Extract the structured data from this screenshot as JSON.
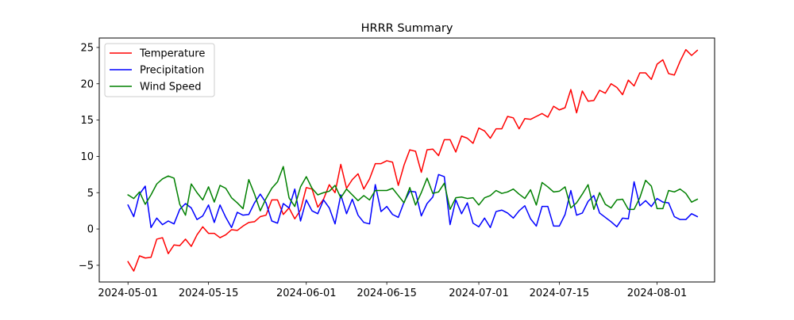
{
  "chart_data": {
    "type": "line",
    "title": "HRRR Summary",
    "xlabel": "",
    "ylabel": "",
    "x_start": "2024-05-01",
    "x_ticks": [
      "2024-05-01",
      "2024-05-15",
      "2024-06-01",
      "2024-06-15",
      "2024-07-01",
      "2024-07-15",
      "2024-08-01"
    ],
    "y_ticks": [
      -5,
      0,
      5,
      10,
      15,
      20,
      25
    ],
    "ylim": [
      -7.3,
      26.3
    ],
    "xlim": [
      "2024-04-26",
      "2024-08-11"
    ],
    "grid": false,
    "legend_position": "upper-left",
    "series": [
      {
        "name": "Temperature",
        "color": "#ff0000",
        "values": [
          -4.5,
          -5.8,
          -3.7,
          -4.0,
          -3.9,
          -1.4,
          -1.2,
          -3.4,
          -2.2,
          -2.3,
          -1.4,
          -2.4,
          -0.8,
          0.3,
          -0.6,
          -0.6,
          -1.2,
          -0.8,
          -0.1,
          -0.2,
          0.4,
          0.9,
          1.0,
          1.7,
          1.9,
          4.0,
          4.0,
          2.0,
          2.9,
          1.4,
          2.6,
          5.7,
          5.5,
          3.0,
          4.1,
          6.1,
          5.0,
          8.9,
          5.6,
          6.8,
          7.6,
          5.5,
          6.9,
          9.0,
          9.0,
          9.4,
          9.2,
          6.0,
          8.8,
          10.9,
          10.7,
          7.8,
          10.9,
          11.0,
          10.1,
          12.3,
          12.3,
          10.6,
          12.8,
          12.5,
          11.8,
          13.9,
          13.5,
          12.5,
          13.8,
          13.8,
          15.5,
          15.3,
          13.8,
          15.2,
          15.1,
          15.5,
          15.9,
          15.4,
          16.9,
          16.4,
          16.7,
          19.2,
          16.0,
          19.0,
          17.6,
          17.7,
          19.1,
          18.7,
          20.0,
          19.5,
          18.5,
          20.5,
          19.7,
          21.5,
          21.5,
          20.6,
          22.7,
          23.3,
          21.4,
          21.2,
          23.1,
          24.7,
          23.9,
          24.6
        ]
      },
      {
        "name": "Precipitation",
        "color": "#0000ff",
        "values": [
          3.3,
          1.7,
          4.8,
          5.9,
          0.2,
          1.5,
          0.6,
          1.1,
          0.7,
          2.7,
          3.5,
          2.9,
          1.3,
          1.8,
          3.3,
          0.9,
          3.3,
          1.6,
          0.2,
          2.3,
          1.9,
          2.0,
          3.6,
          4.8,
          3.6,
          1.1,
          0.8,
          3.5,
          2.9,
          5.5,
          1.1,
          4.0,
          2.5,
          2.1,
          4.0,
          2.9,
          0.7,
          4.7,
          2.1,
          4.1,
          1.9,
          0.9,
          0.7,
          6.1,
          2.4,
          3.1,
          2.0,
          1.6,
          3.7,
          5.2,
          5.1,
          1.8,
          3.5,
          4.4,
          7.5,
          7.2,
          0.6,
          4.0,
          2.1,
          3.6,
          0.8,
          0.3,
          1.5,
          0.2,
          2.4,
          2.6,
          2.2,
          1.5,
          2.5,
          3.2,
          1.4,
          0.4,
          3.1,
          3.1,
          0.4,
          0.4,
          2.0,
          5.3,
          1.9,
          2.2,
          3.8,
          4.6,
          2.2,
          1.6,
          1.0,
          0.3,
          1.5,
          1.4,
          6.5,
          3.2,
          3.9,
          3.1,
          4.2,
          3.7,
          3.6,
          1.7,
          1.3,
          1.3,
          2.1,
          1.7
        ]
      },
      {
        "name": "Wind Speed",
        "color": "#008000",
        "values": [
          4.7,
          4.2,
          5.1,
          3.4,
          4.7,
          6.2,
          6.9,
          7.3,
          7.0,
          3.4,
          1.9,
          6.2,
          5.0,
          4.0,
          5.8,
          3.7,
          6.0,
          5.6,
          4.3,
          3.6,
          2.8,
          6.8,
          4.8,
          2.5,
          4.2,
          5.6,
          6.5,
          8.6,
          4.3,
          3.1,
          5.8,
          7.2,
          5.6,
          4.7,
          5.0,
          5.2,
          6.0,
          4.3,
          5.5,
          4.7,
          3.9,
          4.6,
          4.0,
          5.3,
          5.3,
          5.3,
          5.6,
          4.6,
          3.6,
          5.7,
          3.3,
          5.0,
          7.0,
          4.9,
          5.1,
          6.3,
          2.7,
          4.3,
          4.4,
          4.2,
          4.3,
          3.3,
          4.3,
          4.6,
          5.3,
          4.9,
          5.1,
          5.5,
          4.8,
          4.2,
          5.4,
          3.3,
          6.4,
          5.8,
          5.1,
          5.2,
          5.8,
          2.9,
          3.6,
          4.8,
          6.1,
          2.7,
          5.0,
          3.4,
          2.9,
          4.0,
          4.1,
          2.7,
          2.7,
          4.3,
          6.7,
          5.9,
          2.8,
          2.8,
          5.3,
          5.1,
          5.5,
          4.9,
          3.7,
          4.1
        ]
      }
    ]
  }
}
